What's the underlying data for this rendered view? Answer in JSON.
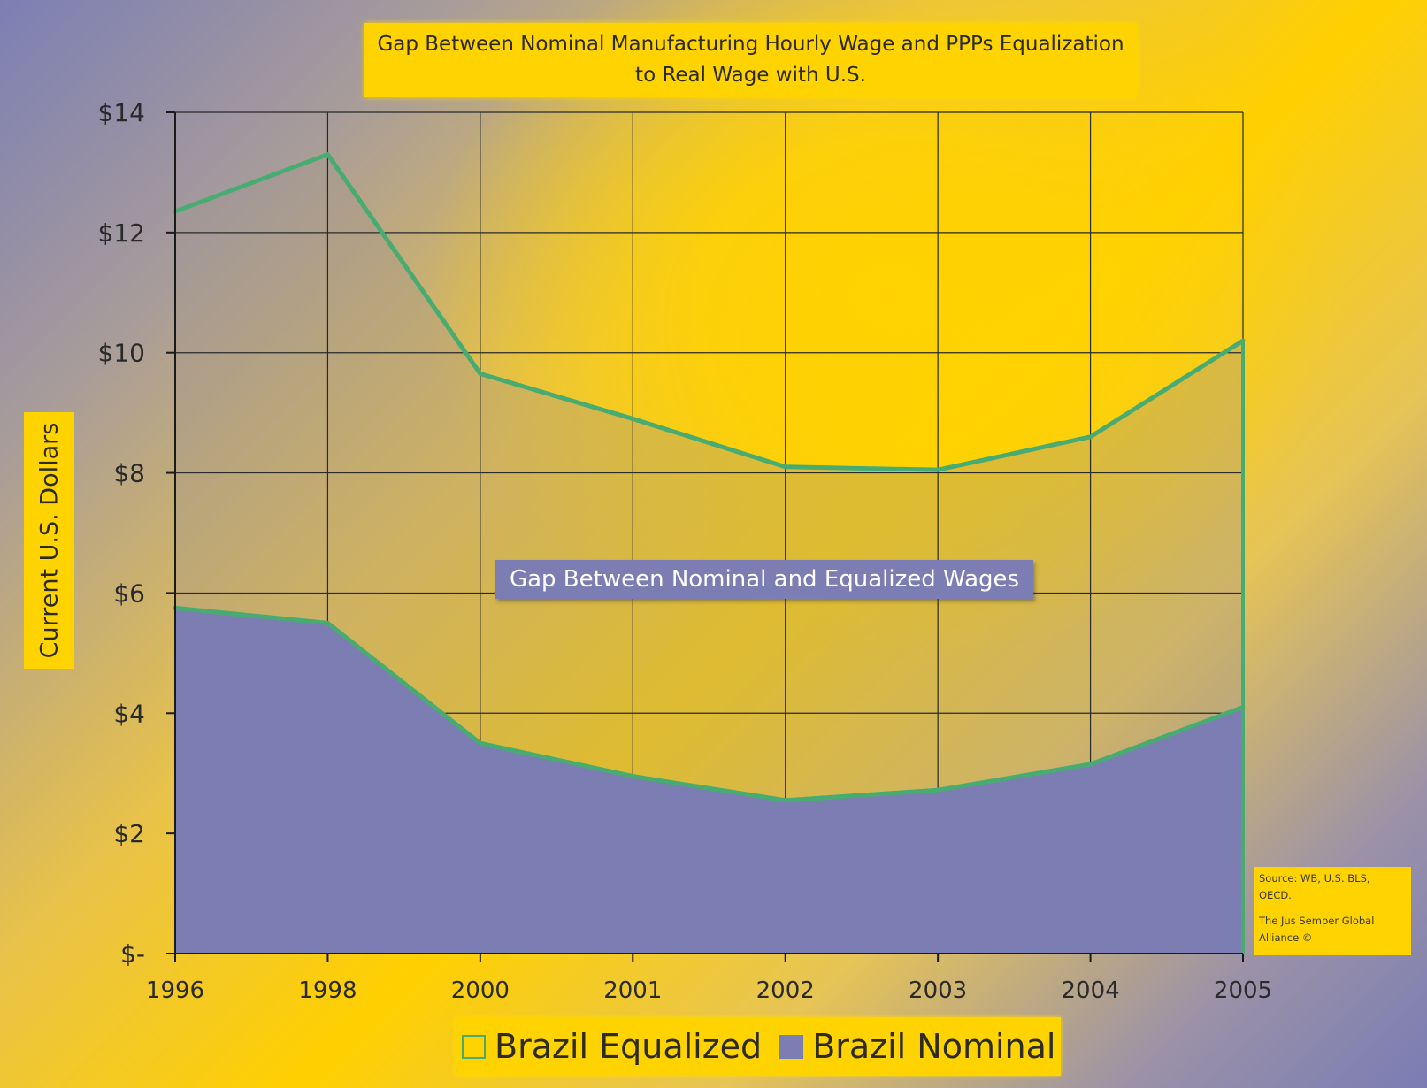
{
  "chart_data": {
    "type": "area",
    "title_line1": "Gap Between Nominal Manufacturing Hourly Wage and PPPs Equalization",
    "title_line2": "to Real Wage with U.S.",
    "ylabel": "Current U.S. Dollars",
    "categories": [
      "1996",
      "1998",
      "2000",
      "2001",
      "2002",
      "2003",
      "2004",
      "2005"
    ],
    "y_ticks": [
      "$-",
      "$2",
      "$4",
      "$6",
      "$8",
      "$10",
      "$12",
      "$14"
    ],
    "ylim": [
      0,
      14
    ],
    "grid": true,
    "series": [
      {
        "name": "Brazil Equalized",
        "values": [
          12.35,
          13.3,
          9.65,
          8.9,
          8.1,
          8.05,
          8.6,
          10.2
        ]
      },
      {
        "name": "Brazil Nominal",
        "values": [
          5.75,
          5.5,
          3.5,
          2.95,
          2.55,
          2.72,
          3.15,
          4.1
        ]
      }
    ],
    "annotation": "Gap Between Nominal and Equalized Wages",
    "legend_position": "bottom"
  },
  "source": {
    "line1": "Source: WB, U.S. BLS,\nOECD.",
    "line2": "The Jus Semper Global\nAlliance ©"
  },
  "colors": {
    "nominal_fill": "#7c7db2",
    "line": "#48ac72",
    "highlight": "#ffd300"
  }
}
